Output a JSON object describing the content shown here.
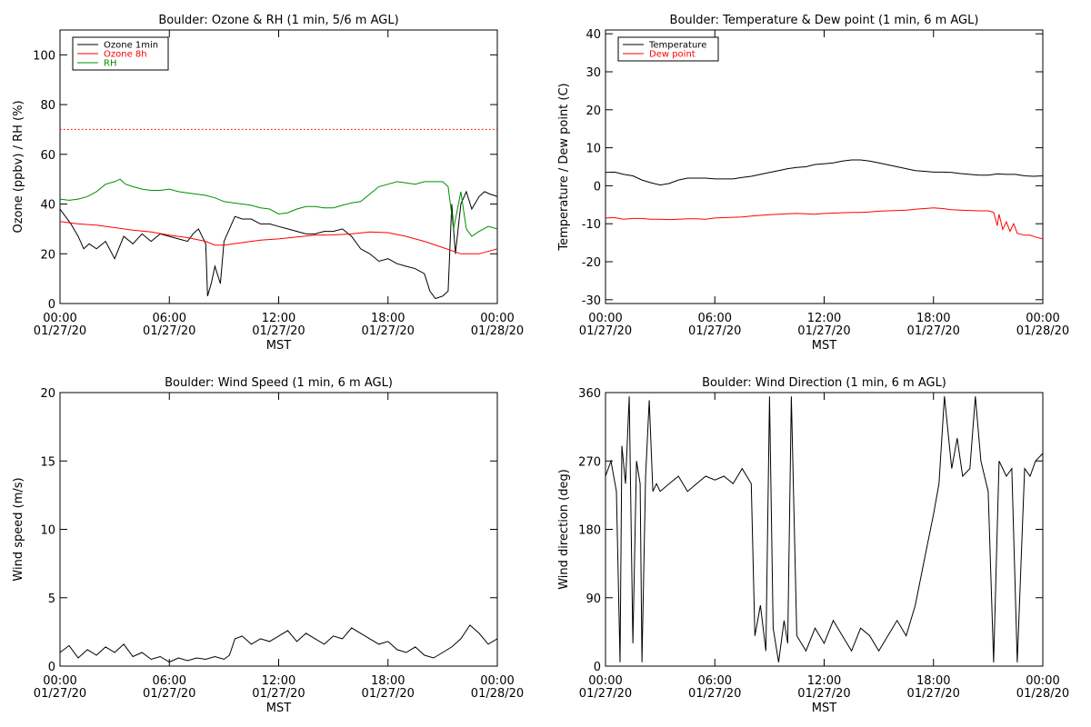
{
  "chart_data": [
    {
      "type": "line",
      "title": "Boulder: Ozone & RH (1 min, 5/6 m AGL)",
      "ylabel": "Ozone (ppbv) / RH (%)",
      "xlabel": "MST",
      "xlim": [
        0,
        24
      ],
      "ylim": [
        0,
        110
      ],
      "yticks": [
        0,
        20,
        40,
        60,
        80,
        100
      ],
      "xticks": [
        {
          "hour": 0,
          "time": "00:00",
          "date": "01/27/20"
        },
        {
          "hour": 6,
          "time": "06:00",
          "date": "01/27/20"
        },
        {
          "hour": 12,
          "time": "12:00",
          "date": "01/27/20"
        },
        {
          "hour": 18,
          "time": "18:00",
          "date": "01/27/20"
        },
        {
          "hour": 24,
          "time": "00:00",
          "date": "01/28/20"
        }
      ],
      "legend": "top-left",
      "reference_line": {
        "y": 70,
        "color": "#ff0000",
        "style": "dotted"
      },
      "series": [
        {
          "name": "Ozone 1min",
          "color": "#000000",
          "x": [
            0,
            0.3,
            0.6,
            1,
            1.3,
            1.6,
            2,
            2.5,
            3,
            3.5,
            4,
            4.5,
            5,
            5.5,
            6,
            6.5,
            7,
            7.3,
            7.6,
            8,
            8.1,
            8.3,
            8.5,
            8.8,
            9,
            9.3,
            9.6,
            10,
            10.5,
            11,
            11.5,
            12,
            12.5,
            13,
            13.5,
            14,
            14.5,
            15,
            15.5,
            16,
            16.5,
            17,
            17.5,
            18,
            18.5,
            19,
            19.5,
            20,
            20.3,
            20.6,
            21,
            21.3,
            21.5,
            21.7,
            22,
            22.3,
            22.6,
            23,
            23.3,
            23.6,
            24
          ],
          "y": [
            38,
            35,
            32,
            27,
            22,
            24,
            22,
            25,
            18,
            27,
            24,
            28,
            25,
            28,
            27,
            26,
            25,
            28,
            30,
            24,
            3,
            8,
            15,
            8,
            25,
            30,
            35,
            34,
            34,
            32,
            32,
            31,
            30,
            29,
            28,
            28,
            29,
            29,
            30,
            27,
            22,
            20,
            17,
            18,
            16,
            15,
            14,
            12,
            5,
            2,
            3,
            5,
            40,
            20,
            40,
            45,
            38,
            43,
            45,
            44,
            43
          ]
        },
        {
          "name": "Ozone 8h",
          "color": "#ff0000",
          "x": [
            0,
            1,
            2,
            3,
            4,
            5,
            6,
            7,
            8,
            8.5,
            9,
            10,
            11,
            12,
            13,
            14,
            15,
            16,
            17,
            18,
            19,
            20,
            21,
            22,
            23,
            24
          ],
          "y": [
            33,
            32,
            31.5,
            30.5,
            29.5,
            28.8,
            27.5,
            26.5,
            25,
            23.5,
            23.5,
            24.5,
            25.5,
            26,
            26.8,
            27.5,
            27.6,
            28,
            28.8,
            28.5,
            27,
            25,
            22.5,
            20,
            20,
            22
          ]
        },
        {
          "name": "RH",
          "color": "#008f00",
          "x": [
            0,
            0.5,
            1,
            1.5,
            2,
            2.5,
            3,
            3.3,
            3.6,
            4,
            4.5,
            5,
            5.5,
            6,
            6.5,
            7,
            7.5,
            8,
            8.5,
            9,
            9.5,
            10,
            10.5,
            11,
            11.5,
            12,
            12.5,
            13,
            13.5,
            14,
            14.5,
            15,
            15.5,
            16,
            16.5,
            17,
            17.5,
            18,
            18.5,
            19,
            19.5,
            20,
            20.5,
            21,
            21.3,
            21.6,
            22,
            22.3,
            22.6,
            23,
            23.5,
            24
          ],
          "y": [
            42,
            41.5,
            42,
            43,
            45,
            48,
            49,
            50,
            48,
            47,
            46,
            45.5,
            45.5,
            46,
            45,
            44.5,
            44,
            43.5,
            42.5,
            41,
            40.5,
            40,
            39.5,
            38.5,
            38,
            36,
            36.5,
            38,
            39,
            39,
            38.5,
            38.5,
            39.5,
            40.5,
            41,
            44,
            47,
            48,
            49,
            48.5,
            48,
            49,
            49,
            49,
            47,
            30,
            45,
            30,
            27,
            29,
            31,
            30
          ]
        }
      ]
    },
    {
      "type": "line",
      "title": "Boulder: Temperature & Dew point (1 min, 6 m AGL)",
      "ylabel": "Temperature / Dew point (C)",
      "xlabel": "MST",
      "xlim": [
        0,
        24
      ],
      "ylim": [
        -31,
        41
      ],
      "yticks": [
        -30,
        -20,
        -10,
        0,
        10,
        20,
        30,
        40
      ],
      "xticks": [
        {
          "hour": 0,
          "time": "00:00",
          "date": "01/27/20"
        },
        {
          "hour": 6,
          "time": "06:00",
          "date": "01/27/20"
        },
        {
          "hour": 12,
          "time": "12:00",
          "date": "01/27/20"
        },
        {
          "hour": 18,
          "time": "18:00",
          "date": "01/27/20"
        },
        {
          "hour": 24,
          "time": "00:00",
          "date": "01/28/20"
        }
      ],
      "legend": "top-left",
      "series": [
        {
          "name": "Temperature",
          "color": "#000000",
          "x": [
            0,
            0.5,
            1,
            1.5,
            2,
            2.5,
            3,
            3.5,
            4,
            4.5,
            5,
            5.5,
            6,
            6.5,
            7,
            7.5,
            8,
            8.5,
            9,
            9.5,
            10,
            10.5,
            11,
            11.5,
            12,
            12.5,
            13,
            13.5,
            14,
            14.5,
            15,
            15.5,
            16,
            16.5,
            17,
            17.5,
            18,
            18.5,
            19,
            19.5,
            20,
            20.5,
            21,
            21.5,
            22,
            22.5,
            23,
            23.5,
            24
          ],
          "y": [
            3.5,
            3.6,
            3,
            2.6,
            1.5,
            0.8,
            0.2,
            0.6,
            1.5,
            2,
            2,
            2,
            1.8,
            1.8,
            1.8,
            2.2,
            2.5,
            3,
            3.5,
            4,
            4.5,
            4.8,
            5,
            5.6,
            5.8,
            6,
            6.5,
            6.8,
            6.8,
            6.5,
            6,
            5.5,
            5,
            4.5,
            4,
            3.8,
            3.6,
            3.6,
            3.5,
            3.2,
            3,
            2.8,
            2.8,
            3.1,
            3,
            3,
            2.6,
            2.5,
            2.6
          ]
        },
        {
          "name": "Dew point",
          "color": "#ff0000",
          "x": [
            0,
            0.5,
            1,
            1.5,
            2,
            2.5,
            3,
            3.5,
            4,
            4.5,
            5,
            5.5,
            6,
            6.5,
            7,
            7.5,
            8,
            8.5,
            9,
            9.5,
            10,
            10.5,
            11,
            11.5,
            12,
            12.5,
            13,
            13.5,
            14,
            14.5,
            15,
            15.5,
            16,
            16.5,
            17,
            17.5,
            18,
            18.5,
            19,
            19.5,
            20,
            20.5,
            21,
            21.3,
            21.5,
            21.6,
            21.8,
            22,
            22.2,
            22.4,
            22.6,
            23,
            23.3,
            23.6,
            24
          ],
          "y": [
            -8.5,
            -8.4,
            -8.8,
            -8.6,
            -8.6,
            -8.8,
            -8.8,
            -8.9,
            -8.8,
            -8.7,
            -8.7,
            -8.8,
            -8.5,
            -8.4,
            -8.3,
            -8.2,
            -8,
            -7.8,
            -7.6,
            -7.5,
            -7.4,
            -7.3,
            -7.4,
            -7.5,
            -7.3,
            -7.2,
            -7.1,
            -7,
            -7,
            -6.9,
            -6.7,
            -6.6,
            -6.5,
            -6.4,
            -6.2,
            -6,
            -5.8,
            -6,
            -6.3,
            -6.4,
            -6.5,
            -6.6,
            -6.6,
            -7,
            -10.5,
            -7.5,
            -11.5,
            -9.5,
            -12,
            -10,
            -12.5,
            -13,
            -13,
            -13.5,
            -14
          ]
        }
      ]
    },
    {
      "type": "line",
      "title": "Boulder: Wind Speed (1 min, 6 m AGL)",
      "ylabel": "Wind speed (m/s)",
      "xlabel": "MST",
      "xlim": [
        0,
        24
      ],
      "ylim": [
        0,
        20
      ],
      "yticks": [
        0,
        5,
        10,
        15,
        20
      ],
      "xticks": [
        {
          "hour": 0,
          "time": "00:00",
          "date": "01/27/20"
        },
        {
          "hour": 6,
          "time": "06:00",
          "date": "01/27/20"
        },
        {
          "hour": 12,
          "time": "12:00",
          "date": "01/27/20"
        },
        {
          "hour": 18,
          "time": "18:00",
          "date": "01/27/20"
        },
        {
          "hour": 24,
          "time": "00:00",
          "date": "01/28/20"
        }
      ],
      "series": [
        {
          "name": "",
          "color": "#000000",
          "x": [
            0,
            0.5,
            1,
            1.5,
            2,
            2.5,
            3,
            3.5,
            4,
            4.5,
            5,
            5.5,
            6,
            6.5,
            7,
            7.5,
            8,
            8.5,
            9,
            9.3,
            9.6,
            10,
            10.5,
            11,
            11.5,
            12,
            12.5,
            13,
            13.5,
            14,
            14.5,
            15,
            15.5,
            16,
            16.5,
            17,
            17.5,
            18,
            18.5,
            19,
            19.5,
            20,
            20.5,
            21,
            21.5,
            22,
            22.5,
            23,
            23.5,
            24
          ],
          "y": [
            1,
            1.5,
            0.6,
            1.2,
            0.8,
            1.4,
            1,
            1.6,
            0.7,
            1,
            0.5,
            0.7,
            0.3,
            0.6,
            0.4,
            0.6,
            0.5,
            0.7,
            0.5,
            0.8,
            2,
            2.2,
            1.6,
            2,
            1.8,
            2.2,
            2.6,
            1.8,
            2.4,
            2,
            1.6,
            2.2,
            2,
            2.8,
            2.4,
            2,
            1.6,
            1.8,
            1.2,
            1,
            1.4,
            0.8,
            0.6,
            1,
            1.4,
            2,
            3,
            2.4,
            1.6,
            2
          ]
        }
      ]
    },
    {
      "type": "line",
      "title": "Boulder: Wind Direction (1 min, 6 m AGL)",
      "ylabel": "Wind direction (deg)",
      "xlabel": "MST",
      "xlim": [
        0,
        24
      ],
      "ylim": [
        0,
        360
      ],
      "yticks": [
        0,
        90,
        180,
        270,
        360
      ],
      "xticks": [
        {
          "hour": 0,
          "time": "00:00",
          "date": "01/27/20"
        },
        {
          "hour": 6,
          "time": "06:00",
          "date": "01/27/20"
        },
        {
          "hour": 12,
          "time": "12:00",
          "date": "01/27/20"
        },
        {
          "hour": 18,
          "time": "18:00",
          "date": "01/27/20"
        },
        {
          "hour": 24,
          "time": "00:00",
          "date": "01/28/20"
        }
      ],
      "series": [
        {
          "name": "",
          "color": "#000000",
          "x": [
            0,
            0.3,
            0.6,
            0.8,
            0.9,
            1.1,
            1.3,
            1.5,
            1.7,
            1.9,
            2,
            2.2,
            2.4,
            2.6,
            2.8,
            3,
            3.5,
            4,
            4.5,
            5,
            5.5,
            6,
            6.5,
            7,
            7.5,
            8,
            8.2,
            8.5,
            8.8,
            9,
            9.2,
            9.5,
            9.8,
            10,
            10.2,
            10.5,
            11,
            11.5,
            12,
            12.5,
            13,
            13.5,
            14,
            14.5,
            15,
            15.5,
            16,
            16.5,
            17,
            17.5,
            18,
            18.3,
            18.6,
            19,
            19.3,
            19.6,
            20,
            20.3,
            20.6,
            21,
            21.3,
            21.6,
            22,
            22.3,
            22.6,
            23,
            23.3,
            23.6,
            24
          ],
          "y": [
            250,
            270,
            230,
            5,
            290,
            240,
            355,
            30,
            270,
            240,
            5,
            250,
            350,
            230,
            240,
            230,
            240,
            250,
            230,
            240,
            250,
            245,
            250,
            240,
            260,
            240,
            40,
            80,
            20,
            355,
            50,
            5,
            60,
            30,
            355,
            40,
            20,
            50,
            30,
            60,
            40,
            20,
            50,
            40,
            20,
            40,
            60,
            40,
            80,
            140,
            200,
            240,
            355,
            260,
            300,
            250,
            260,
            355,
            270,
            230,
            5,
            270,
            250,
            260,
            5,
            260,
            250,
            270,
            280
          ]
        }
      ]
    }
  ]
}
